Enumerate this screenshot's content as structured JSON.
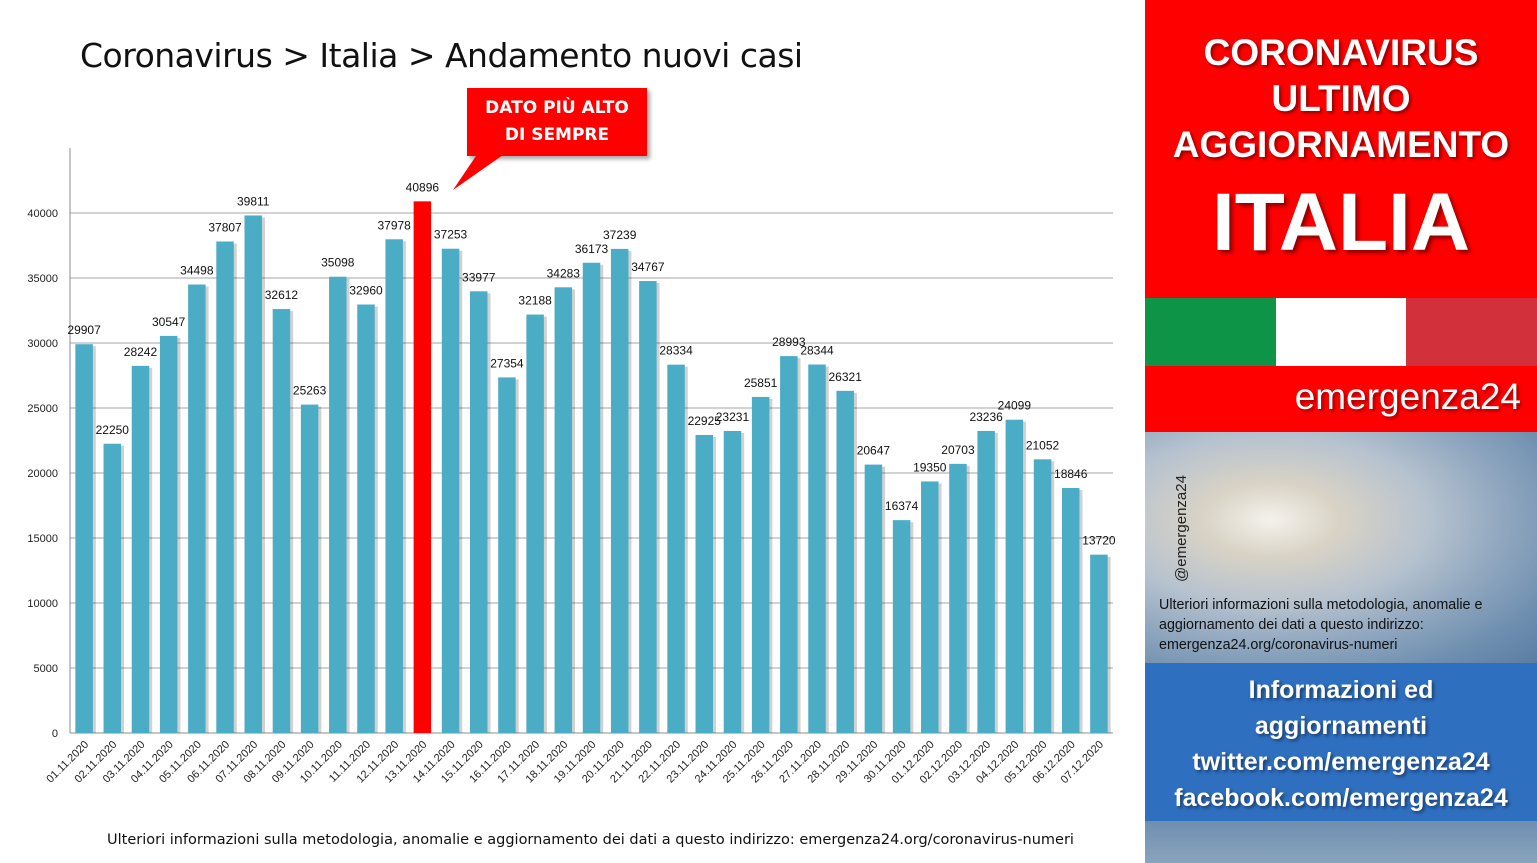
{
  "chart_data": {
    "type": "bar",
    "title": "Coronavirus > Italia > Andamento nuovi casi",
    "categories": [
      "01.11.2020",
      "02.11.2020",
      "03.11.2020",
      "04.11.2020",
      "05.11.2020",
      "06.11.2020",
      "07.11.2020",
      "08.11.2020",
      "09.11.2020",
      "10.11.2020",
      "11.11.2020",
      "12.11.2020",
      "13.11.2020",
      "14.11.2020",
      "15.11.2020",
      "16.11.2020",
      "17.11.2020",
      "18.11.2020",
      "19.11.2020",
      "20.11.2020",
      "21.11.2020",
      "22.11.2020",
      "23.11.2020",
      "24.11.2020",
      "25.11.2020",
      "26.11.2020",
      "27.11.2020",
      "28.11.2020",
      "29.11.2020",
      "30.11.2020",
      "01.12.2020",
      "02.12.2020",
      "03.12.2020",
      "04.12.2020",
      "05.12.2020",
      "06.12.2020",
      "07.12.2020"
    ],
    "values": [
      29907,
      22250,
      28242,
      30547,
      34498,
      37807,
      39811,
      32612,
      25263,
      35098,
      32960,
      37978,
      40896,
      37253,
      33977,
      27354,
      32188,
      34283,
      36173,
      37239,
      34767,
      28334,
      22925,
      23231,
      25851,
      28993,
      28344,
      26321,
      20647,
      16374,
      19350,
      20703,
      23236,
      24099,
      21052,
      18846,
      13720
    ],
    "ylim": [
      0,
      45000
    ],
    "yticks": [
      0,
      5000,
      10000,
      15000,
      20000,
      25000,
      30000,
      35000,
      40000
    ],
    "highlight_index": 12,
    "grid": true,
    "bar_color": "#4bacc6",
    "highlight_color": "#ff0000",
    "annotation": {
      "line1": "DATO PIÙ ALTO",
      "line2": "DI SEMPRE"
    }
  },
  "footnote": "Ulteriori informazioni sulla metodologia, anomalie e aggiornamento dei dati a questo indirizzo: emergenza24.org/coronavirus-numeri",
  "panel": {
    "line1": "CORONAVIRUS",
    "line2": "ULTIMO",
    "line3": "AGGIORNAMENTO",
    "big": "ITALIA",
    "flag_colors": [
      "#0d9446",
      "#ffffff",
      "#d2303a"
    ],
    "brand": "emergenza24",
    "handle": "@emergenza24",
    "note": "Ulteriori informazioni sulla metodologia, anomalie e aggiornamento dei dati a questo indirizzo: emergenza24.org/coronavirus-numeri",
    "info_line1": "Informazioni ed",
    "info_line2": "aggiornamenti",
    "info_line3": "twitter.com/emergenza24",
    "info_line4": "facebook.com/emergenza24"
  }
}
